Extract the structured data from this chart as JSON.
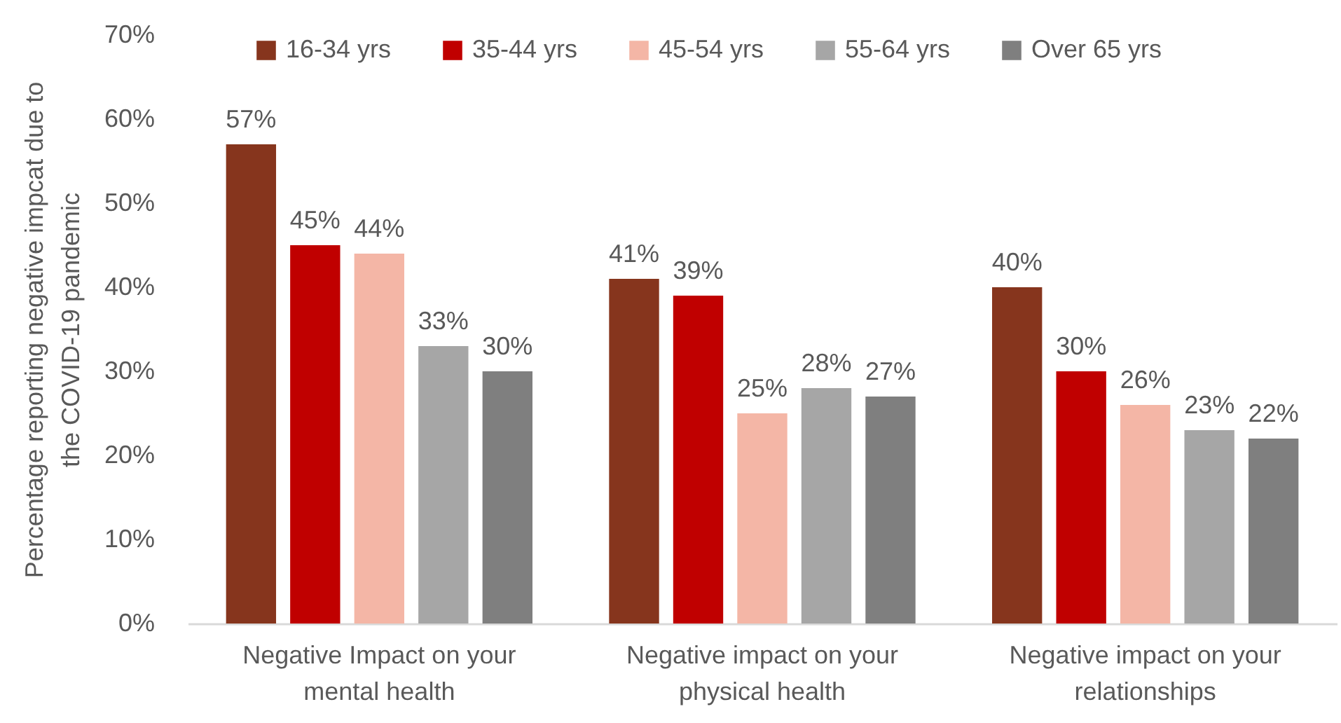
{
  "chart_data": {
    "type": "bar",
    "ylabel": "Percentage reporting negative impcat due to the COVID-19 pandemic",
    "categories": [
      "Negative Impact on your mental health",
      "Negative impact on your physical health",
      "Negative impact on your relationships"
    ],
    "series": [
      {
        "name": "16-34 yrs",
        "color": "#86351d",
        "values": [
          57,
          41,
          40
        ],
        "value_labels": [
          "57%",
          "41%",
          "40%"
        ]
      },
      {
        "name": "35-44 yrs",
        "color": "#c00000",
        "values": [
          45,
          39,
          30
        ],
        "value_labels": [
          "45%",
          "39%",
          "30%"
        ]
      },
      {
        "name": "45-54 yrs",
        "color": "#f4b6a6",
        "values": [
          44,
          25,
          26
        ],
        "value_labels": [
          "44%",
          "25%",
          "26%"
        ]
      },
      {
        "name": "55-64 yrs",
        "color": "#a6a6a6",
        "values": [
          33,
          28,
          23
        ],
        "value_labels": [
          "33%",
          "28%",
          "23%"
        ]
      },
      {
        "name": "Over 65 yrs",
        "color": "#7f7f7f",
        "values": [
          30,
          27,
          22
        ],
        "value_labels": [
          "30%",
          "27%",
          "22%"
        ]
      }
    ],
    "ylim": [
      0,
      70
    ],
    "yticks": [
      {
        "value": 0,
        "label": "0%"
      },
      {
        "value": 10,
        "label": "10%"
      },
      {
        "value": 20,
        "label": "20%"
      },
      {
        "value": 30,
        "label": "30%"
      },
      {
        "value": 40,
        "label": "40%"
      },
      {
        "value": 50,
        "label": "50%"
      },
      {
        "value": 60,
        "label": "60%"
      },
      {
        "value": 70,
        "label": "70%"
      }
    ],
    "legend": "top"
  }
}
